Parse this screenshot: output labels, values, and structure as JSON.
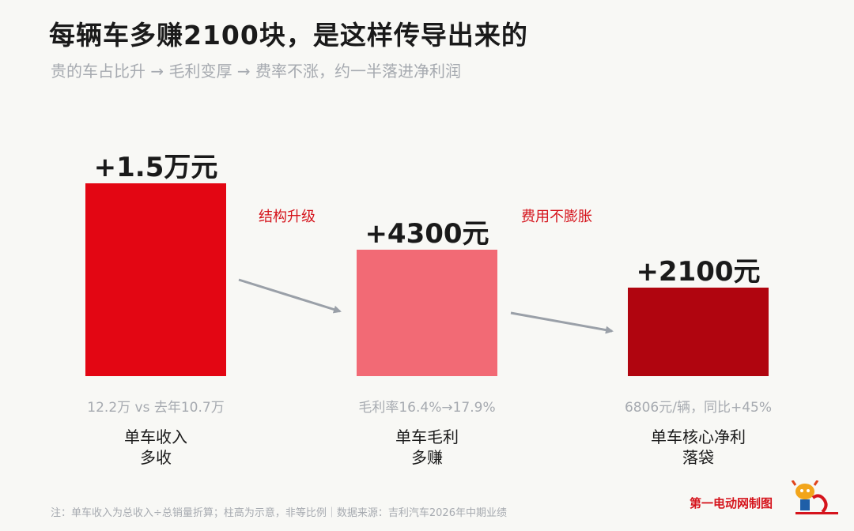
{
  "chart_data": {
    "type": "bar",
    "title": "每辆车多赚2100块，是这样传导出来的",
    "subtitle": "贵的车占比升 → 毛利变厚 → 费率不涨，约一半落进净利润",
    "categories": [
      "单车收入\n多收",
      "单车毛利\n多赚",
      "单车核心净利\n落袋"
    ],
    "value_labels": [
      "+1.5万元",
      "+4300元",
      "+2100元"
    ],
    "details": [
      "12.2万 vs 去年10.7万",
      "毛利率16.4%→17.9%",
      "6806元/辆，同比+45%"
    ],
    "values": [
      15000,
      4300,
      2100
    ],
    "colors": [
      "#e30613",
      "#f26a75",
      "#b0050f"
    ],
    "arrow_labels": [
      "结构升级",
      "费用不膨胀"
    ],
    "scale_note": "柱高为示意，非等比例"
  },
  "footnote": "注：单车收入为总收入÷总销量折算；柱高为示意，非等比例｜数据来源：吉利汽车2026年中期业绩",
  "credit": "第一电动网制图"
}
